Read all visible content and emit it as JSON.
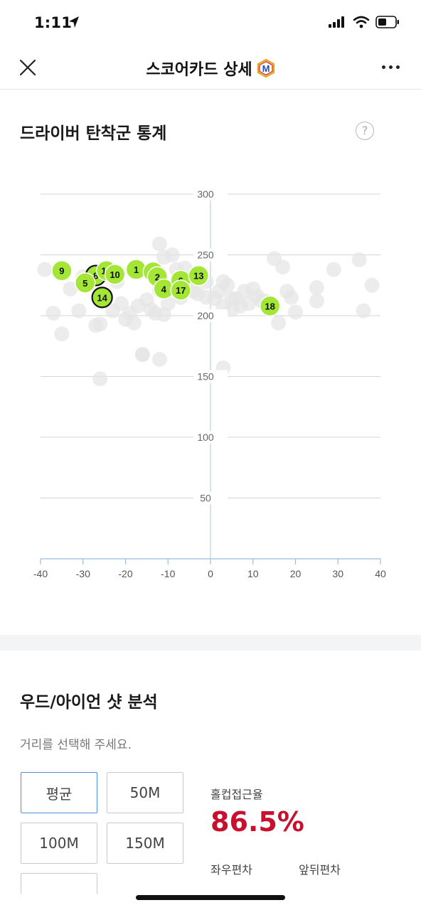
{
  "status_bar": {
    "time": "1:11"
  },
  "nav": {
    "title": "스코어카드 상세",
    "badge_letter": "M"
  },
  "driver_section": {
    "title": "드라이버 탄착군 통계",
    "help_symbol": "?"
  },
  "chart_data": {
    "type": "scatter",
    "xlim": [
      -40,
      40
    ],
    "ylim": [
      0,
      300
    ],
    "x_ticks": [
      "-40",
      "-30",
      "-20",
      "-10",
      "0",
      "10",
      "20",
      "30",
      "40"
    ],
    "y_ticks": [
      "300",
      "250",
      "200",
      "150",
      "100",
      "50"
    ],
    "grid": true,
    "highlighted_color": "#a3e635",
    "background_color": "#e6e6e6",
    "highlighted_points": [
      {
        "label": "9",
        "x": -35,
        "y": 237
      },
      {
        "label": "8",
        "x": -27,
        "y": 233,
        "outlined": true
      },
      {
        "label": "5",
        "x": -29.5,
        "y": 227
      },
      {
        "label": "15",
        "x": -24.5,
        "y": 237
      },
      {
        "label": "10",
        "x": -22.5,
        "y": 234
      },
      {
        "label": "14",
        "x": -25.5,
        "y": 215,
        "outlined": true
      },
      {
        "label": "1",
        "x": -17.5,
        "y": 238
      },
      {
        "label": "11",
        "x": -13.5,
        "y": 236
      },
      {
        "label": "2",
        "x": -12.5,
        "y": 232
      },
      {
        "label": "4",
        "x": -11,
        "y": 222
      },
      {
        "label": "6",
        "x": -7,
        "y": 229
      },
      {
        "label": "17",
        "x": -7,
        "y": 221
      },
      {
        "label": "13",
        "x": -2.8,
        "y": 233
      },
      {
        "label": "18",
        "x": 14,
        "y": 208
      }
    ],
    "background_points": [
      [
        -39,
        238
      ],
      [
        -37,
        202
      ],
      [
        -35,
        185
      ],
      [
        -33,
        222
      ],
      [
        -31,
        204
      ],
      [
        -30,
        232
      ],
      [
        -27,
        192
      ],
      [
        -26,
        193
      ],
      [
        -23,
        204
      ],
      [
        -22,
        228
      ],
      [
        -21,
        210
      ],
      [
        -20,
        197
      ],
      [
        -19,
        202
      ],
      [
        -18,
        194
      ],
      [
        -17,
        208
      ],
      [
        -16,
        168
      ],
      [
        -15,
        213
      ],
      [
        -14,
        205
      ],
      [
        -13,
        202
      ],
      [
        -12,
        221
      ],
      [
        -12,
        259
      ],
      [
        -11,
        201
      ],
      [
        -11,
        248
      ],
      [
        -10,
        210
      ],
      [
        -9,
        250
      ],
      [
        -8,
        238
      ],
      [
        -7,
        215
      ],
      [
        -6,
        239
      ],
      [
        -5,
        227
      ],
      [
        -4,
        220
      ],
      [
        -3,
        218
      ],
      [
        -1,
        215
      ],
      [
        -1,
        228
      ],
      [
        1,
        214
      ],
      [
        2,
        220
      ],
      [
        3,
        208
      ],
      [
        3,
        228
      ],
      [
        4,
        225
      ],
      [
        5,
        214
      ],
      [
        5,
        205
      ],
      [
        6,
        214
      ],
      [
        7,
        208
      ],
      [
        8,
        220
      ],
      [
        9,
        210
      ],
      [
        10,
        222
      ],
      [
        11,
        216
      ],
      [
        12,
        212
      ],
      [
        13,
        212
      ],
      [
        14,
        209
      ],
      [
        15,
        247
      ],
      [
        16,
        194
      ],
      [
        17,
        240
      ],
      [
        18,
        220
      ],
      [
        19,
        215
      ],
      [
        20,
        203
      ],
      [
        25,
        223
      ],
      [
        25,
        212
      ],
      [
        29,
        238
      ],
      [
        35,
        246
      ],
      [
        36,
        204
      ],
      [
        38,
        225
      ],
      [
        -26,
        148
      ],
      [
        -12,
        164
      ],
      [
        3,
        157
      ],
      [
        -16,
        168
      ]
    ]
  },
  "shot_section": {
    "title": "우드/아이언 샷 분석",
    "subtitle": "거리를 선택해 주세요.",
    "buttons": [
      "평균",
      "50M",
      "100M",
      "150M"
    ],
    "hole_approach_label": "홀컵접근율",
    "hole_approach_value": "86.5%",
    "lateral_label": "좌우편차",
    "depth_label": "앞뒤편차"
  }
}
